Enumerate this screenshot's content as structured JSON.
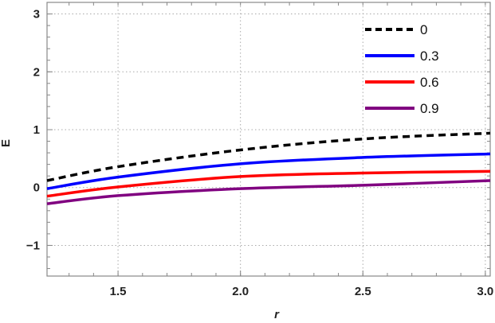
{
  "chart_data": {
    "type": "line",
    "xlabel": "r",
    "ylabel": "E",
    "xlim": [
      1.21,
      3.02
    ],
    "ylim": [
      -1.53,
      3.2
    ],
    "xticks": [
      1.5,
      2.0,
      2.5,
      3.0
    ],
    "xtick_labels": [
      "1.5",
      "2.0",
      "2.5",
      "3.0"
    ],
    "yticks": [
      -1,
      0,
      1,
      2,
      3
    ],
    "ytick_labels": [
      "−1",
      "0",
      "1",
      "2",
      "3"
    ],
    "grid": true,
    "legend_position": "top-right",
    "x": [
      1.21,
      1.5,
      2.0,
      2.5,
      3.02
    ],
    "series": [
      {
        "name": "0",
        "color": "#000000",
        "dashed": true,
        "values": [
          0.12,
          0.36,
          0.65,
          0.84,
          0.94
        ]
      },
      {
        "name": "0.3",
        "color": "#0000ff",
        "dashed": false,
        "values": [
          -0.02,
          0.18,
          0.41,
          0.52,
          0.58
        ]
      },
      {
        "name": "0.6",
        "color": "#ff0000",
        "dashed": false,
        "values": [
          -0.15,
          0.01,
          0.19,
          0.25,
          0.28
        ]
      },
      {
        "name": "0.9",
        "color": "#800080",
        "dashed": false,
        "values": [
          -0.28,
          -0.14,
          -0.02,
          0.04,
          0.12
        ]
      }
    ]
  }
}
